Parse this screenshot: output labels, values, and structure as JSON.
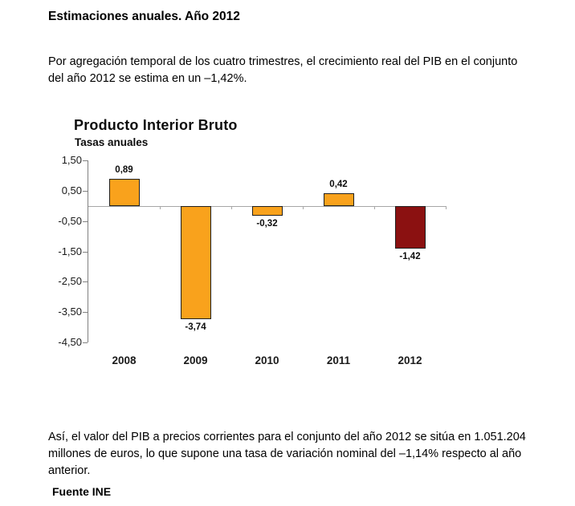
{
  "document": {
    "heading": "Estimaciones anuales. Año 2012",
    "paragraph1": "Por agregación temporal de los cuatro trimestres, el crecimiento real del PIB en el conjunto\ndel año 2012 se estima en un –1,42%.",
    "paragraph2": "Así, el valor del PIB a precios corrientes para el conjunto del año 2012 se sitúa en 1.051.204\nmillones de euros, lo que supone una tasa de variación nominal del –1,14% respecto al año\nanterior.",
    "source": "Fuente INE"
  },
  "chart_data": {
    "type": "bar",
    "title": "Producto Interior Bruto",
    "subtitle": "Tasas anuales",
    "categories": [
      "2008",
      "2009",
      "2010",
      "2011",
      "2012"
    ],
    "values": [
      0.89,
      -3.74,
      -0.32,
      0.42,
      -1.42
    ],
    "value_labels": [
      "0,89",
      "-3,74",
      "-0,32",
      "0,42",
      "-1,42"
    ],
    "y_tick_labels": [
      "1,50",
      "0,50",
      "-0,50",
      "-1,50",
      "-2,50",
      "-3,50",
      "-4,50"
    ],
    "y_tick_values": [
      1.5,
      0.5,
      -0.5,
      -1.5,
      -2.5,
      -3.5,
      -4.5
    ],
    "ylim": [
      -4.5,
      1.5
    ],
    "grid": "off",
    "legend": "none",
    "colors": {
      "bar_default": "#F9A21C",
      "bar_highlight_2012": "#8B1111",
      "bar_border": "#1F1F1F",
      "y_axis_line": "#808080",
      "zero_axis_line": "#A6A6A6"
    }
  }
}
